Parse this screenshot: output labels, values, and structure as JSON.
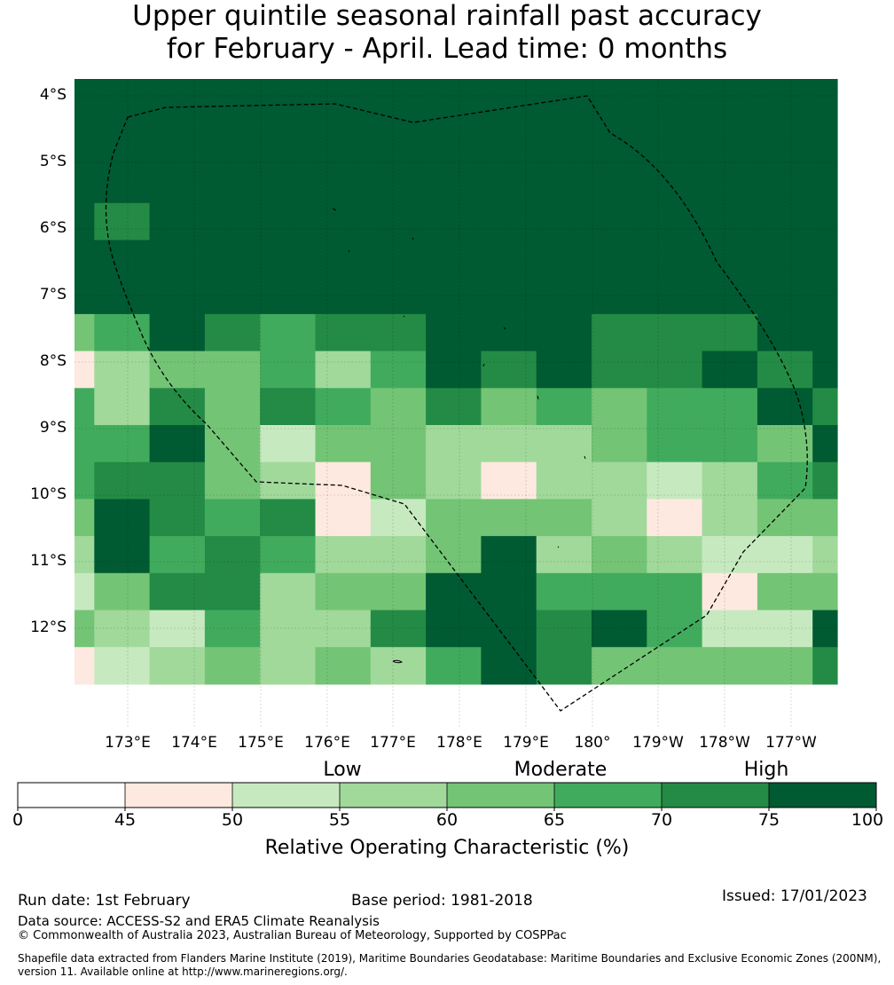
{
  "title_line1": "Upper quintile seasonal rainfall past accuracy",
  "title_line2": "for February - April. Lead time: 0 months",
  "y_labels": [
    "4°S",
    "5°S",
    "6°S",
    "7°S",
    "8°S",
    "9°S",
    "10°S",
    "11°S",
    "12°S"
  ],
  "x_labels": [
    "173°E",
    "174°E",
    "175°E",
    "176°E",
    "177°E",
    "178°E",
    "179°E",
    "180°",
    "179°W",
    "178°W",
    "177°W"
  ],
  "map_grid": [
    [
      7,
      7,
      7,
      7,
      7,
      7,
      7,
      7,
      7,
      7,
      7,
      7,
      7,
      7,
      7
    ],
    [
      7,
      7,
      7,
      7,
      7,
      7,
      7,
      7,
      7,
      7,
      7,
      7,
      7,
      7,
      7
    ],
    [
      7,
      7,
      7,
      7,
      7,
      7,
      7,
      7,
      7,
      7,
      7,
      7,
      7,
      7,
      7
    ],
    [
      7,
      7,
      7,
      7,
      7,
      7,
      7,
      7,
      7,
      7,
      7,
      7,
      7,
      7,
      7
    ],
    [
      7,
      6,
      7,
      7,
      7,
      7,
      7,
      7,
      7,
      7,
      7,
      7,
      7,
      7,
      7
    ],
    [
      7,
      7,
      7,
      7,
      7,
      7,
      7,
      7,
      7,
      7,
      7,
      7,
      7,
      7,
      7
    ],
    [
      7,
      7,
      7,
      7,
      7,
      7,
      7,
      7,
      7,
      7,
      7,
      7,
      7,
      7,
      7
    ],
    [
      4,
      5,
      7,
      6,
      5,
      6,
      6,
      7,
      7,
      7,
      6,
      6,
      6,
      7,
      7
    ],
    [
      1,
      3,
      4,
      4,
      5,
      3,
      5,
      7,
      6,
      7,
      6,
      6,
      7,
      6,
      7
    ],
    [
      5,
      3,
      6,
      4,
      6,
      5,
      4,
      6,
      4,
      5,
      4,
      5,
      5,
      7,
      6
    ],
    [
      5,
      5,
      7,
      4,
      2,
      4,
      4,
      3,
      3,
      3,
      4,
      5,
      5,
      4,
      7
    ],
    [
      5,
      6,
      6,
      4,
      3,
      1,
      4,
      3,
      1,
      3,
      3,
      2,
      3,
      5,
      6
    ],
    [
      4,
      7,
      6,
      5,
      6,
      1,
      2,
      4,
      4,
      4,
      3,
      1,
      3,
      4,
      4
    ],
    [
      3,
      7,
      5,
      6,
      5,
      3,
      3,
      4,
      7,
      3,
      4,
      3,
      2,
      2,
      3
    ],
    [
      2,
      4,
      6,
      6,
      3,
      4,
      4,
      7,
      7,
      5,
      5,
      5,
      1,
      4,
      4
    ],
    [
      4,
      3,
      2,
      5,
      3,
      3,
      6,
      7,
      7,
      6,
      7,
      5,
      2,
      2,
      7
    ],
    [
      1,
      2,
      3,
      4,
      3,
      4,
      3,
      5,
      7,
      6,
      4,
      4,
      4,
      4,
      6
    ]
  ],
  "colorbar": {
    "colors": [
      "#ffffff",
      "#fee9e0",
      "#c7e9c0",
      "#a1d99b",
      "#74c476",
      "#41ab5d",
      "#238b45",
      "#005a32"
    ],
    "ticks": [
      "0",
      "45",
      "50",
      "55",
      "60",
      "65",
      "70",
      "75",
      "100"
    ],
    "categories": [
      "Low",
      "Moderate",
      "High"
    ],
    "label": "Relative Operating Characteristic (%)"
  },
  "footer": {
    "run_date": "Run date: 1st February",
    "base_period": "Base period: 1981-2018",
    "issued": "Issued: 17/01/2023",
    "data_source": "Data source: ACCESS-S2 and ERA5 Climate Reanalysis",
    "copyright": "© Commonwealth of Australia 2023, Australian Bureau of Meteorology, Supported by COSPPac",
    "shapefile_line1": "Shapefile data extracted from Flanders Marine Institute (2019), Maritime Boundaries Geodatabase: Maritime Boundaries and Exclusive Economic Zones (200NM),",
    "shapefile_line2": "version 11. Available online at http://www.marineregions.org/."
  }
}
